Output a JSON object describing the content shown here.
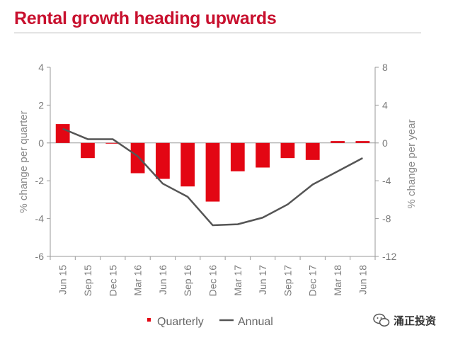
{
  "title": "Rental growth heading upwards",
  "watermark": "涌正投资",
  "chart_data": {
    "type": "bar+line",
    "categories": [
      "Jun 15",
      "Sep 15",
      "Dec 15",
      "Mar 16",
      "Jun 16",
      "Sep 16",
      "Dec 16",
      "Mar 17",
      "Jun 17",
      "Sep 17",
      "Dec 17",
      "Mar 18",
      "Jun 18"
    ],
    "series": [
      {
        "name": "Quarterly",
        "type": "bar",
        "axis": "left",
        "color": "#e30613",
        "values": [
          1.0,
          -0.8,
          0.0,
          -1.6,
          -1.9,
          -2.3,
          -3.1,
          -1.5,
          -1.3,
          -0.8,
          -0.9,
          0.1,
          0.1
        ]
      },
      {
        "name": "Annual",
        "type": "line",
        "axis": "right",
        "color": "#555555",
        "values": [
          1.5,
          0.4,
          0.4,
          -1.4,
          -4.3,
          -5.7,
          -8.7,
          -8.6,
          -7.9,
          -6.5,
          -4.4,
          -3.0,
          -1.6
        ]
      }
    ],
    "left_axis": {
      "label": "% change per quarter",
      "min": -6,
      "max": 4,
      "ticks": [
        4,
        2,
        0,
        -2,
        -4,
        -6
      ]
    },
    "right_axis": {
      "label": "% change per year",
      "min": -12,
      "max": 8,
      "ticks": [
        8,
        4,
        0,
        -4,
        -8,
        -12
      ]
    },
    "grid": false,
    "legend_position": "bottom"
  }
}
